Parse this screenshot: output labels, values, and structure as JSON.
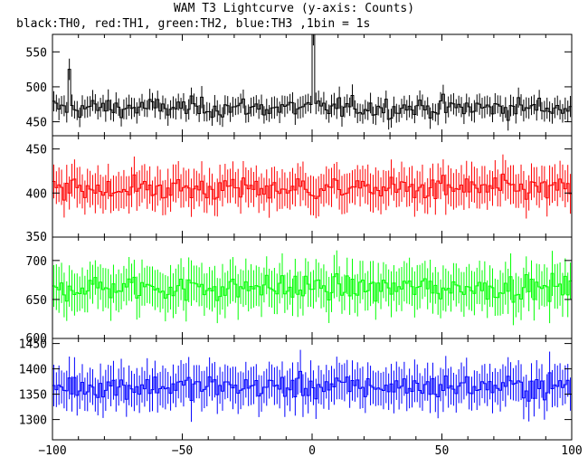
{
  "header": {
    "title": "WAM T3 Lightcurve (y-axis: Counts)",
    "subtitle": "black:TH0, red:TH1, green:TH2, blue:TH3 ,1bin = 1s"
  },
  "chart_data": [
    {
      "type": "line",
      "step": true,
      "error_bars": true,
      "color": "#000000",
      "xlim": [
        -100,
        100
      ],
      "ylim": [
        430,
        575
      ],
      "yticks": [
        450,
        500,
        550
      ],
      "x_range": [
        -100,
        100
      ],
      "mean": 470,
      "spread": 18,
      "error": 14,
      "features": [
        {
          "x": 0,
          "y": 575
        },
        {
          "x": -94,
          "y": 525
        }
      ]
    },
    {
      "type": "line",
      "step": true,
      "error_bars": true,
      "color": "#ff0000",
      "xlim": [
        -100,
        100
      ],
      "ylim": [
        350,
        465
      ],
      "yticks": [
        350,
        400,
        450
      ],
      "x_range": [
        -100,
        100
      ],
      "mean": 405,
      "spread": 17,
      "error": 20
    },
    {
      "type": "line",
      "step": true,
      "error_bars": true,
      "color": "#00ff00",
      "xlim": [
        -100,
        100
      ],
      "ylim": [
        600,
        730
      ],
      "yticks": [
        600,
        650,
        700
      ],
      "x_range": [
        -100,
        100
      ],
      "mean": 665,
      "spread": 20,
      "error": 26
    },
    {
      "type": "line",
      "step": true,
      "error_bars": true,
      "color": "#0000ff",
      "xlim": [
        -100,
        100
      ],
      "ylim": [
        1260,
        1460
      ],
      "yticks": [
        1300,
        1350,
        1400,
        1450
      ],
      "x_range": [
        -100,
        100
      ],
      "mean": 1365,
      "spread": 30,
      "error": 37
    }
  ],
  "x_axis": {
    "ticks": [
      -100,
      -50,
      0,
      50,
      100
    ]
  }
}
